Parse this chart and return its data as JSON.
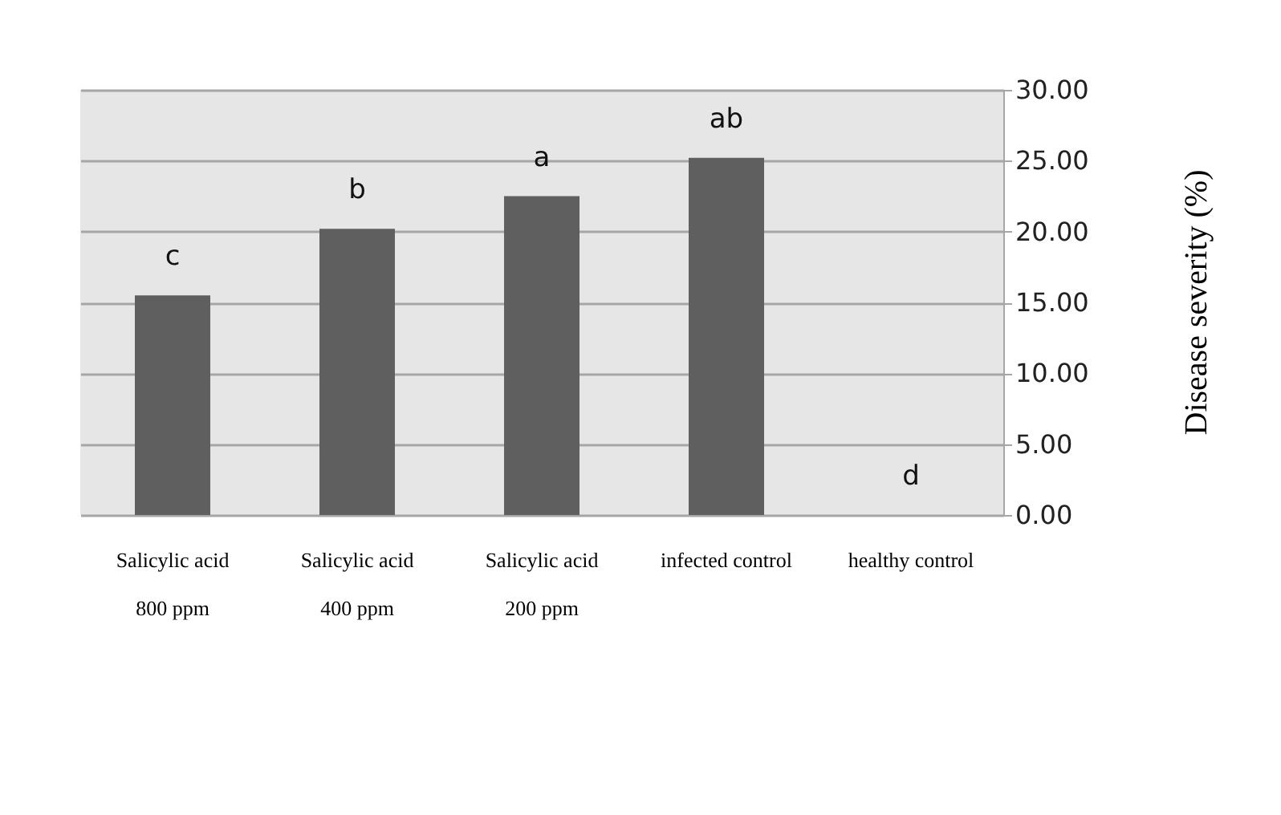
{
  "chart_data": {
    "type": "bar",
    "ylabel": "Disease severity (%)",
    "categories": [
      "Salicylic acid\n800 ppm",
      "Salicylic acid\n400 ppm",
      "Salicylic acid\n200 ppm",
      "infected control",
      "healthy control"
    ],
    "values": [
      15.5,
      20.2,
      22.5,
      25.2,
      0
    ],
    "color": "#5f5f5f",
    "ylim": [
      0,
      30
    ],
    "yticks": [
      {
        "value": 0,
        "label": "0.00"
      },
      {
        "value": 5,
        "label": "5.00"
      },
      {
        "value": 10,
        "label": "10.00"
      },
      {
        "value": 15,
        "label": "15.00"
      },
      {
        "value": 20,
        "label": "20.00"
      },
      {
        "value": 25,
        "label": "25.00"
      },
      {
        "value": 30,
        "label": "30.00"
      }
    ],
    "grid": "y",
    "annotations": [
      {
        "text": "c",
        "x": "Salicylic acid\n800 ppm",
        "y": 15.5
      },
      {
        "text": "b",
        "x": "Salicylic acid\n400 ppm",
        "y": 20.2
      },
      {
        "text": "a",
        "x": "Salicylic acid\n200 ppm",
        "y": 22.5
      },
      {
        "text": "ab",
        "x": "infected control",
        "y": 25.2
      },
      {
        "text": "d",
        "x": "healthy control",
        "y": 0
      }
    ]
  }
}
